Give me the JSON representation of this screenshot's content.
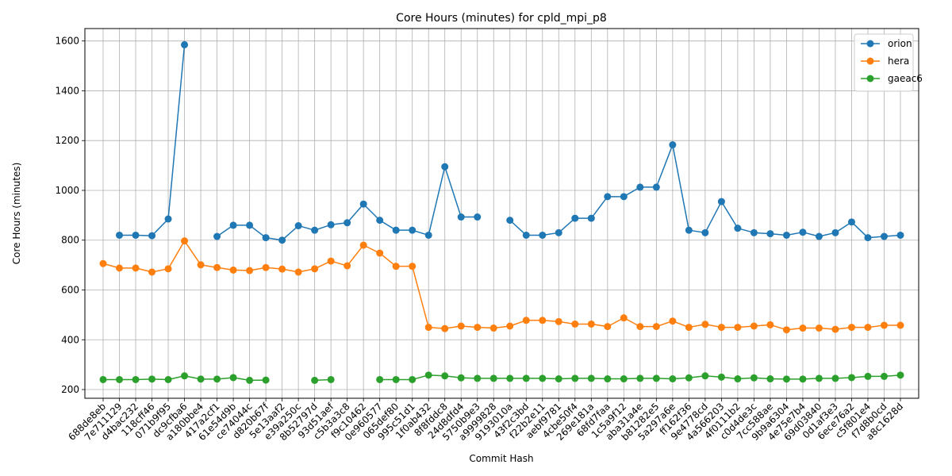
{
  "chart_data": {
    "type": "line",
    "title": "Core Hours (minutes) for cpld_mpi_p8",
    "xlabel": "Commit Hash",
    "ylabel": "Core Hours (minutes)",
    "ylim": [
      165,
      1650
    ],
    "yticks": [
      200,
      400,
      600,
      800,
      1000,
      1200,
      1400,
      1600
    ],
    "grid": true,
    "legend_position": "top-right",
    "categories": [
      "688de8eb",
      "7e711129",
      "d4bac232",
      "118cff46",
      "071b9f95",
      "dc9cfba6",
      "a180bbe4",
      "417a2cf1",
      "61e54d9b",
      "ce74044c",
      "d820b67f",
      "5e13aaf2",
      "e39a250c",
      "8b52797d",
      "93d51aef",
      "c5b3a3c8",
      "f9c10462",
      "0e960577",
      "065def80",
      "995c51d1",
      "1f0ab432",
      "8f8fddc8",
      "24d8dfd4",
      "5750b9e3",
      "a9999828",
      "9193010a",
      "43f2c3bd",
      "f22b2e11",
      "aebf9781",
      "4cbe50f4",
      "269e181a",
      "68fd7faa",
      "1c5a9f12",
      "aba31a4e",
      "b81282e5",
      "5a297a6e",
      "ff162f36",
      "9e4778cd",
      "4a566203",
      "4f0111b2",
      "c0d4de3c",
      "7cc588ae",
      "9b9a6304",
      "4e75e7b4",
      "69d03840",
      "0d1af3e3",
      "6ece76a2",
      "c5f801e4",
      "f7d8b0cd",
      "a8c1628d"
    ],
    "series": [
      {
        "name": "orion",
        "color": "#1f77b4",
        "values": [
          null,
          820,
          820,
          818,
          885,
          1585,
          null,
          815,
          860,
          860,
          810,
          800,
          858,
          840,
          862,
          870,
          945,
          880,
          840,
          840,
          820,
          1095,
          893,
          893,
          null,
          880,
          820,
          820,
          830,
          888,
          888,
          975,
          975,
          1013,
          1013,
          1183,
          840,
          830,
          955,
          848,
          830,
          826,
          820,
          832,
          815,
          830,
          873,
          810,
          815,
          820
        ]
      },
      {
        "name": "hera",
        "color": "#ff7f0e",
        "values": [
          706,
          688,
          688,
          672,
          685,
          797,
          701,
          690,
          680,
          678,
          690,
          684,
          672,
          685,
          716,
          697,
          780,
          748,
          695,
          695,
          450,
          445,
          455,
          450,
          447,
          455,
          478,
          478,
          473,
          463,
          463,
          453,
          488,
          453,
          453,
          475,
          450,
          462,
          450,
          450,
          455,
          460,
          440,
          447,
          447,
          442,
          450,
          450,
          458,
          458
        ]
      },
      {
        "name": "gaeac6",
        "color": "#2ca02c",
        "values": [
          240,
          240,
          240,
          242,
          240,
          255,
          242,
          242,
          248,
          237,
          238,
          null,
          null,
          237,
          240,
          null,
          null,
          240,
          240,
          240,
          258,
          255,
          247,
          245,
          245,
          245,
          245,
          245,
          243,
          245,
          245,
          243,
          243,
          245,
          245,
          243,
          247,
          255,
          250,
          243,
          247,
          243,
          242,
          242,
          245,
          245,
          248,
          253,
          253,
          258
        ]
      }
    ]
  }
}
